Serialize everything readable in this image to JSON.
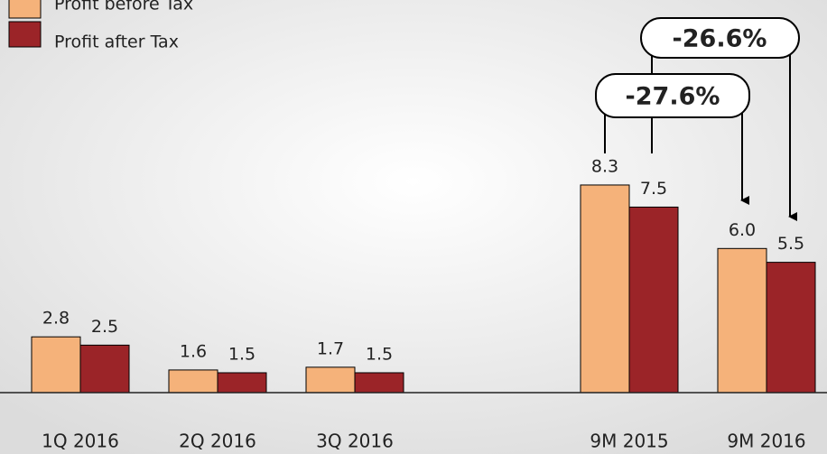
{
  "chart_data": {
    "type": "bar",
    "categories": [
      "1Q 2016",
      "2Q 2016",
      "3Q 2016",
      null,
      "9M 2015",
      "9M 2016"
    ],
    "series": [
      {
        "name": "Profit before Tax",
        "color": "#f5b27a",
        "values": [
          2.8,
          1.6,
          1.7,
          null,
          8.3,
          6.0
        ],
        "value_labels": [
          "2.8",
          "1.6",
          "1.7",
          null,
          "8.3",
          "6.0"
        ]
      },
      {
        "name": "Profit after Tax",
        "color": "#9b2428",
        "values": [
          2.5,
          1.5,
          1.5,
          null,
          7.5,
          5.5
        ]
      }
    ],
    "ylim": [
      0.78,
      15
    ],
    "annotations": [
      "-27.6%",
      "-26.6%"
    ]
  }
}
